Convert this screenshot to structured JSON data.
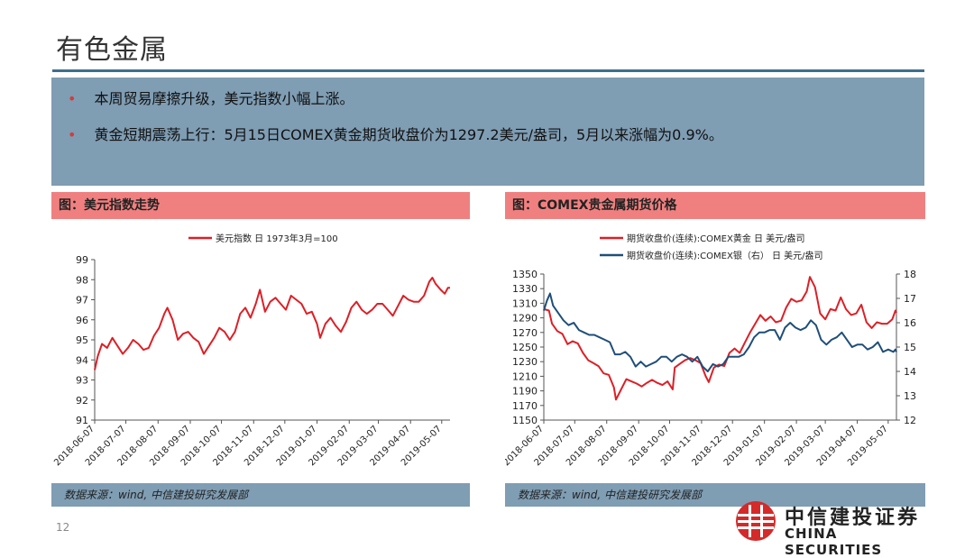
{
  "slide": {
    "title": "有色金属",
    "page_number": "12"
  },
  "summary": {
    "bullets": [
      "本周贸易摩擦升级，美元指数小幅上涨。",
      "黄金短期震荡上行：5月15日COMEX黄金期货收盘价为1297.2美元/盎司，5月以来涨幅为0.9%。"
    ]
  },
  "colors": {
    "accent_blue": "#7f9db3",
    "header_red": "#f08080",
    "gold_series": "#dd1f26",
    "silver_series": "#1f4e79"
  },
  "left_panel": {
    "header": "图：美元指数走势",
    "source": "数据来源：wind, 中信建投研究发展部"
  },
  "right_panel": {
    "header": "图：COMEX贵金属期货价格",
    "source": "数据来源：wind, 中信建投研究发展部"
  },
  "logo": {
    "name_cn": "中信建投证券",
    "name_en": "CHINA SECURITIES"
  },
  "chart_data": [
    {
      "type": "line",
      "legend_position": "top",
      "x_ticks": [
        "2018-06-07",
        "2018-07-07",
        "2018-08-07",
        "2018-09-07",
        "2018-10-07",
        "2018-11-07",
        "2018-12-07",
        "2019-01-07",
        "2019-02-07",
        "2019-03-07",
        "2019-04-07",
        "2019-05-07"
      ],
      "ylim": [
        91,
        99
      ],
      "y_ticks": [
        91,
        92,
        93,
        94,
        95,
        96,
        97,
        98,
        99
      ],
      "grid": false,
      "series": [
        {
          "name": "美元指数 日 1973年3月=100",
          "color": "#dd1f26",
          "points": [
            [
              "2018-06-07",
              93.5
            ],
            [
              "2018-06-10",
              94.2
            ],
            [
              "2018-06-14",
              94.8
            ],
            [
              "2018-06-19",
              94.6
            ],
            [
              "2018-06-24",
              95.1
            ],
            [
              "2018-06-29",
              94.7
            ],
            [
              "2018-07-04",
              94.3
            ],
            [
              "2018-07-09",
              94.6
            ],
            [
              "2018-07-14",
              95.0
            ],
            [
              "2018-07-19",
              94.8
            ],
            [
              "2018-07-24",
              94.5
            ],
            [
              "2018-07-29",
              94.6
            ],
            [
              "2018-08-03",
              95.2
            ],
            [
              "2018-08-08",
              95.6
            ],
            [
              "2018-08-13",
              96.3
            ],
            [
              "2018-08-16",
              96.6
            ],
            [
              "2018-08-21",
              96.0
            ],
            [
              "2018-08-26",
              95.0
            ],
            [
              "2018-08-31",
              95.3
            ],
            [
              "2018-09-05",
              95.4
            ],
            [
              "2018-09-10",
              95.1
            ],
            [
              "2018-09-15",
              94.9
            ],
            [
              "2018-09-20",
              94.3
            ],
            [
              "2018-09-25",
              94.7
            ],
            [
              "2018-09-30",
              95.1
            ],
            [
              "2018-10-05",
              95.6
            ],
            [
              "2018-10-10",
              95.4
            ],
            [
              "2018-10-15",
              95.0
            ],
            [
              "2018-10-20",
              95.4
            ],
            [
              "2018-10-25",
              96.3
            ],
            [
              "2018-10-30",
              96.6
            ],
            [
              "2018-11-04",
              96.1
            ],
            [
              "2018-11-09",
              96.8
            ],
            [
              "2018-11-13",
              97.5
            ],
            [
              "2018-11-18",
              96.4
            ],
            [
              "2018-11-23",
              96.9
            ],
            [
              "2018-11-28",
              97.1
            ],
            [
              "2018-12-03",
              96.8
            ],
            [
              "2018-12-08",
              96.5
            ],
            [
              "2018-12-13",
              97.2
            ],
            [
              "2018-12-18",
              97.0
            ],
            [
              "2018-12-23",
              96.8
            ],
            [
              "2018-12-28",
              96.3
            ],
            [
              "2019-01-02",
              96.4
            ],
            [
              "2019-01-07",
              95.8
            ],
            [
              "2019-01-10",
              95.1
            ],
            [
              "2019-01-15",
              95.8
            ],
            [
              "2019-01-20",
              96.1
            ],
            [
              "2019-01-25",
              95.7
            ],
            [
              "2019-01-30",
              95.4
            ],
            [
              "2019-02-04",
              95.9
            ],
            [
              "2019-02-09",
              96.6
            ],
            [
              "2019-02-14",
              96.9
            ],
            [
              "2019-02-19",
              96.5
            ],
            [
              "2019-02-24",
              96.3
            ],
            [
              "2019-03-01",
              96.5
            ],
            [
              "2019-03-06",
              96.8
            ],
            [
              "2019-03-11",
              96.8
            ],
            [
              "2019-03-16",
              96.5
            ],
            [
              "2019-03-21",
              96.2
            ],
            [
              "2019-03-26",
              96.7
            ],
            [
              "2019-03-31",
              97.2
            ],
            [
              "2019-04-05",
              97.0
            ],
            [
              "2019-04-10",
              96.9
            ],
            [
              "2019-04-15",
              96.9
            ],
            [
              "2019-04-20",
              97.2
            ],
            [
              "2019-04-25",
              97.9
            ],
            [
              "2019-04-28",
              98.1
            ],
            [
              "2019-05-01",
              97.8
            ],
            [
              "2019-05-06",
              97.5
            ],
            [
              "2019-05-10",
              97.3
            ],
            [
              "2019-05-13",
              97.6
            ],
            [
              "2019-05-15",
              97.6
            ]
          ]
        }
      ]
    },
    {
      "type": "line",
      "legend_position": "top",
      "x_ticks": [
        "2018-06-07",
        "2018-07-07",
        "2018-08-07",
        "2018-09-07",
        "2018-10-07",
        "2018-11-07",
        "2018-12-07",
        "2019-01-07",
        "2019-02-07",
        "2019-03-07",
        "2019-04-07",
        "2019-05-07"
      ],
      "ylim_left": [
        1150,
        1350
      ],
      "y_ticks_left": [
        1150,
        1170,
        1190,
        1210,
        1230,
        1250,
        1270,
        1290,
        1310,
        1330,
        1350
      ],
      "ylim_right": [
        12,
        18
      ],
      "y_ticks_right": [
        12,
        13,
        14,
        15,
        16,
        17,
        18
      ],
      "grid": false,
      "series": [
        {
          "name": "期货收盘价(连续):COMEX黄金 日 美元/盎司",
          "axis": "left",
          "color": "#dd1f26",
          "points": [
            [
              "2018-06-07",
              1302
            ],
            [
              "2018-06-12",
              1300
            ],
            [
              "2018-06-15",
              1282
            ],
            [
              "2018-06-20",
              1272
            ],
            [
              "2018-06-25",
              1268
            ],
            [
              "2018-06-30",
              1254
            ],
            [
              "2018-07-05",
              1258
            ],
            [
              "2018-07-10",
              1255
            ],
            [
              "2018-07-15",
              1242
            ],
            [
              "2018-07-20",
              1232
            ],
            [
              "2018-07-25",
              1228
            ],
            [
              "2018-07-30",
              1224
            ],
            [
              "2018-08-04",
              1214
            ],
            [
              "2018-08-09",
              1212
            ],
            [
              "2018-08-14",
              1195
            ],
            [
              "2018-08-16",
              1178
            ],
            [
              "2018-08-21",
              1192
            ],
            [
              "2018-08-26",
              1206
            ],
            [
              "2018-08-31",
              1203
            ],
            [
              "2018-09-05",
              1200
            ],
            [
              "2018-09-10",
              1196
            ],
            [
              "2018-09-15",
              1201
            ],
            [
              "2018-09-20",
              1205
            ],
            [
              "2018-09-25",
              1201
            ],
            [
              "2018-09-30",
              1198
            ],
            [
              "2018-10-05",
              1203
            ],
            [
              "2018-10-10",
              1192
            ],
            [
              "2018-10-12",
              1222
            ],
            [
              "2018-10-17",
              1227
            ],
            [
              "2018-10-22",
              1232
            ],
            [
              "2018-10-27",
              1235
            ],
            [
              "2018-11-01",
              1232
            ],
            [
              "2018-11-06",
              1228
            ],
            [
              "2018-11-11",
              1210
            ],
            [
              "2018-11-14",
              1202
            ],
            [
              "2018-11-19",
              1222
            ],
            [
              "2018-11-24",
              1226
            ],
            [
              "2018-11-29",
              1224
            ],
            [
              "2018-12-04",
              1242
            ],
            [
              "2018-12-09",
              1248
            ],
            [
              "2018-12-14",
              1242
            ],
            [
              "2018-12-19",
              1256
            ],
            [
              "2018-12-24",
              1270
            ],
            [
              "2018-12-29",
              1282
            ],
            [
              "2019-01-03",
              1294
            ],
            [
              "2019-01-08",
              1286
            ],
            [
              "2019-01-13",
              1292
            ],
            [
              "2019-01-18",
              1284
            ],
            [
              "2019-01-23",
              1286
            ],
            [
              "2019-01-28",
              1304
            ],
            [
              "2019-02-02",
              1316
            ],
            [
              "2019-02-07",
              1312
            ],
            [
              "2019-02-12",
              1314
            ],
            [
              "2019-02-17",
              1326
            ],
            [
              "2019-02-20",
              1346
            ],
            [
              "2019-02-25",
              1332
            ],
            [
              "2019-03-02",
              1296
            ],
            [
              "2019-03-07",
              1288
            ],
            [
              "2019-03-12",
              1302
            ],
            [
              "2019-03-17",
              1300
            ],
            [
              "2019-03-22",
              1318
            ],
            [
              "2019-03-27",
              1302
            ],
            [
              "2019-04-01",
              1294
            ],
            [
              "2019-04-06",
              1296
            ],
            [
              "2019-04-11",
              1308
            ],
            [
              "2019-04-16",
              1284
            ],
            [
              "2019-04-21",
              1276
            ],
            [
              "2019-04-26",
              1284
            ],
            [
              "2019-05-01",
              1282
            ],
            [
              "2019-05-06",
              1282
            ],
            [
              "2019-05-11",
              1288
            ],
            [
              "2019-05-14",
              1300
            ],
            [
              "2019-05-15",
              1297.2
            ]
          ]
        },
        {
          "name": "期货收盘价(连续):COMEX银（右） 日 美元/盎司",
          "axis": "right",
          "color": "#1f4e79",
          "points": [
            [
              "2018-06-07",
              16.5
            ],
            [
              "2018-06-10",
              16.9
            ],
            [
              "2018-06-13",
              17.2
            ],
            [
              "2018-06-16",
              16.7
            ],
            [
              "2018-06-21",
              16.4
            ],
            [
              "2018-06-26",
              16.1
            ],
            [
              "2018-07-01",
              15.9
            ],
            [
              "2018-07-06",
              16.0
            ],
            [
              "2018-07-11",
              15.7
            ],
            [
              "2018-07-16",
              15.6
            ],
            [
              "2018-07-21",
              15.5
            ],
            [
              "2018-07-26",
              15.5
            ],
            [
              "2018-07-31",
              15.4
            ],
            [
              "2018-08-05",
              15.3
            ],
            [
              "2018-08-10",
              15.2
            ],
            [
              "2018-08-15",
              14.7
            ],
            [
              "2018-08-20",
              14.7
            ],
            [
              "2018-08-25",
              14.8
            ],
            [
              "2018-08-30",
              14.6
            ],
            [
              "2018-09-04",
              14.2
            ],
            [
              "2018-09-09",
              14.4
            ],
            [
              "2018-09-14",
              14.2
            ],
            [
              "2018-09-19",
              14.3
            ],
            [
              "2018-09-24",
              14.4
            ],
            [
              "2018-09-29",
              14.6
            ],
            [
              "2018-10-04",
              14.6
            ],
            [
              "2018-10-09",
              14.4
            ],
            [
              "2018-10-14",
              14.6
            ],
            [
              "2018-10-19",
              14.7
            ],
            [
              "2018-10-24",
              14.6
            ],
            [
              "2018-10-29",
              14.4
            ],
            [
              "2018-11-03",
              14.6
            ],
            [
              "2018-11-08",
              14.2
            ],
            [
              "2018-11-13",
              14.0
            ],
            [
              "2018-11-18",
              14.3
            ],
            [
              "2018-11-23",
              14.2
            ],
            [
              "2018-11-28",
              14.3
            ],
            [
              "2018-12-03",
              14.6
            ],
            [
              "2018-12-08",
              14.6
            ],
            [
              "2018-12-13",
              14.6
            ],
            [
              "2018-12-18",
              14.7
            ],
            [
              "2018-12-23",
              15.0
            ],
            [
              "2018-12-28",
              15.4
            ],
            [
              "2019-01-02",
              15.6
            ],
            [
              "2019-01-07",
              15.6
            ],
            [
              "2019-01-12",
              15.7
            ],
            [
              "2019-01-17",
              15.7
            ],
            [
              "2019-01-22",
              15.3
            ],
            [
              "2019-01-27",
              15.8
            ],
            [
              "2019-02-01",
              16.0
            ],
            [
              "2019-02-06",
              15.8
            ],
            [
              "2019-02-11",
              15.7
            ],
            [
              "2019-02-16",
              15.8
            ],
            [
              "2019-02-21",
              16.1
            ],
            [
              "2019-02-26",
              15.9
            ],
            [
              "2019-03-03",
              15.3
            ],
            [
              "2019-03-08",
              15.1
            ],
            [
              "2019-03-13",
              15.3
            ],
            [
              "2019-03-18",
              15.4
            ],
            [
              "2019-03-23",
              15.6
            ],
            [
              "2019-03-28",
              15.3
            ],
            [
              "2019-04-02",
              15.0
            ],
            [
              "2019-04-07",
              15.1
            ],
            [
              "2019-04-12",
              15.1
            ],
            [
              "2019-04-17",
              14.9
            ],
            [
              "2019-04-22",
              15.0
            ],
            [
              "2019-04-27",
              15.2
            ],
            [
              "2019-05-02",
              14.8
            ],
            [
              "2019-05-07",
              14.9
            ],
            [
              "2019-05-12",
              14.8
            ],
            [
              "2019-05-14",
              14.9
            ],
            [
              "2019-05-15",
              14.8
            ]
          ]
        }
      ]
    }
  ]
}
